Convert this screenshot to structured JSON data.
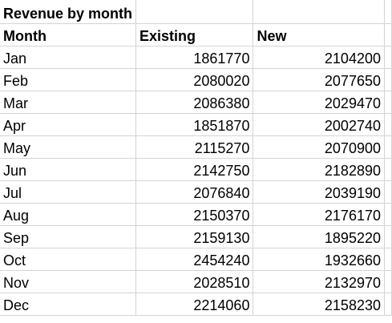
{
  "title": "Revenue by month",
  "headers": {
    "month": "Month",
    "existing": "Existing",
    "new": "New"
  },
  "rows": [
    {
      "month": "Jan",
      "existing": "1861770",
      "new": "2104200"
    },
    {
      "month": "Feb",
      "existing": "2080020",
      "new": "2077650"
    },
    {
      "month": "Mar",
      "existing": "2086380",
      "new": "2029470"
    },
    {
      "month": "Apr",
      "existing": "1851870",
      "new": "2002740"
    },
    {
      "month": "May",
      "existing": "2115270",
      "new": "2070900"
    },
    {
      "month": "Jun",
      "existing": "2142750",
      "new": "2182890"
    },
    {
      "month": "Jul",
      "existing": "2076840",
      "new": "2039190"
    },
    {
      "month": "Aug",
      "existing": "2150370",
      "new": "2176170"
    },
    {
      "month": "Sep",
      "existing": "2159130",
      "new": "1895220"
    },
    {
      "month": "Oct",
      "existing": "2454240",
      "new": "1932660"
    },
    {
      "month": "Nov",
      "existing": "2028510",
      "new": "2132970"
    },
    {
      "month": "Dec",
      "existing": "2214060",
      "new": "2158230"
    }
  ],
  "colors": {
    "gridline": "#d4d4d4",
    "text": "#000000",
    "background": "#ffffff"
  }
}
